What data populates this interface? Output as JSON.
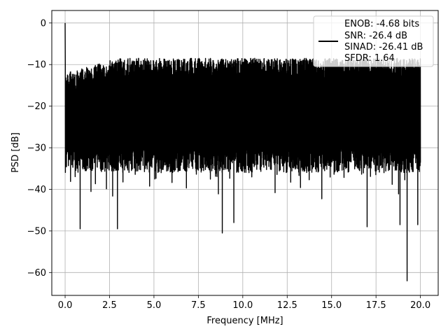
{
  "chart_data": {
    "type": "line",
    "title": "",
    "xlabel": "Frequency [MHz]",
    "ylabel": "PSD [dB]",
    "xlim": [
      -0.75,
      21.0
    ],
    "ylim": [
      -65.5,
      3.0
    ],
    "xticks": [
      0.0,
      2.5,
      5.0,
      7.5,
      10.0,
      12.5,
      15.0,
      17.5,
      20.0
    ],
    "xtick_labels": [
      "0.0",
      "2.5",
      "5.0",
      "7.5",
      "10.0",
      "12.5",
      "15.0",
      "17.5",
      "20.0"
    ],
    "yticks": [
      0,
      -10,
      -20,
      -30,
      -40,
      -50,
      -60
    ],
    "ytick_labels": [
      "0",
      "−10",
      "−20",
      "−30",
      "−40",
      "−50",
      "−60"
    ],
    "grid": true,
    "legend_position": "top-right",
    "series": [
      {
        "name": "ENOB: -4.68 bits\nSNR: -26.4 dB\nSINAD: -26.41 dB\nSFDR: 1.64",
        "color": "#000000",
        "x_range": [
          0.0,
          20.0
        ],
        "peak": {
          "x": 0.0,
          "y": 0.0
        },
        "typical_max": -10,
        "typical_min": -35,
        "notable_dips": [
          {
            "x": 0.85,
            "y": -49.5
          },
          {
            "x": 2.95,
            "y": -49.5
          },
          {
            "x": 8.85,
            "y": -50.5
          },
          {
            "x": 9.5,
            "y": -48.0
          },
          {
            "x": 17.0,
            "y": -49.0
          },
          {
            "x": 18.85,
            "y": -48.5
          },
          {
            "x": 19.25,
            "y": -62.0
          },
          {
            "x": 19.85,
            "y": -48.5
          }
        ]
      }
    ]
  },
  "legend": {
    "lines": [
      "ENOB: -4.68 bits",
      "SNR: -26.4 dB",
      "SINAD: -26.41 dB",
      "SFDR: 1.64"
    ],
    "color": "#000000"
  }
}
